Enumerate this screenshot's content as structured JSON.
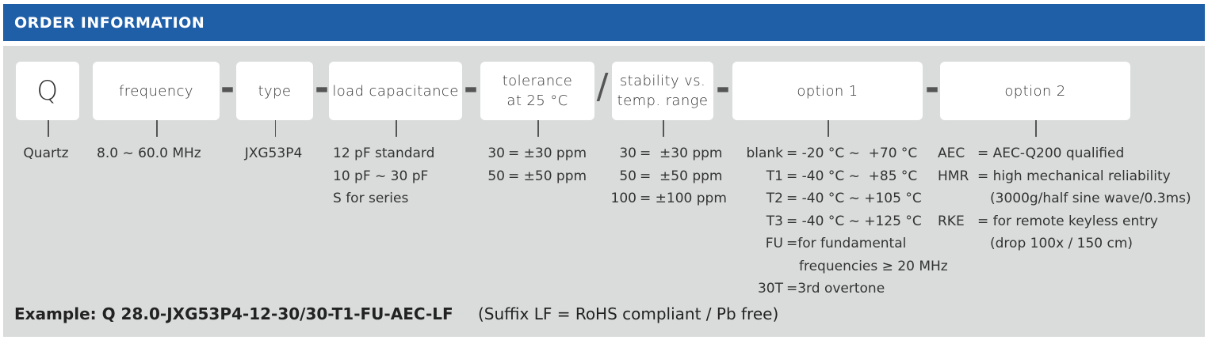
{
  "header": {
    "title": "ORDER INFORMATION"
  },
  "boxes": [
    {
      "label": [
        "Q"
      ],
      "details": [
        "Quartz"
      ]
    },
    {
      "label": [
        "frequency"
      ],
      "details": [
        "8.0 ~ 60.0 MHz"
      ]
    },
    {
      "label": [
        "type"
      ],
      "details": [
        "JXG53P4"
      ]
    },
    {
      "label": [
        "load capacitance"
      ],
      "details": [
        "12 pF standard",
        "10 pF ~ 30 pF",
        "S for series"
      ]
    },
    {
      "label": [
        "tolerance",
        "at 25 °C"
      ],
      "details": [
        {
          "code": "30",
          "desc": "= ±30 ppm"
        },
        {
          "code": "50",
          "desc": "= ±50 ppm"
        }
      ]
    },
    {
      "label": [
        "stability vs.",
        "temp. range"
      ],
      "details": [
        {
          "code": "30",
          "desc": "=  ±30 ppm"
        },
        {
          "code": "50",
          "desc": "=  ±50 ppm"
        },
        {
          "code": "100",
          "desc": "= ±100 ppm"
        }
      ]
    },
    {
      "label": [
        "option 1"
      ],
      "details": [
        {
          "code": "blank",
          "desc": "= -20 °C ~  +70 °C"
        },
        {
          "code": "T1",
          "desc": "= -40 °C ~  +85 °C"
        },
        {
          "code": "T2",
          "desc": "= -40 °C ~ +105 °C"
        },
        {
          "code": "T3",
          "desc": "= -40 °C ~ +125 °C"
        },
        {
          "code": "FU",
          "desc": "=for fundamental"
        },
        {
          "desc": "frequencies ≥ 20 MHz"
        },
        {
          "code": "30T",
          "desc": "=3rd overtone"
        }
      ]
    },
    {
      "label": [
        "option 2"
      ],
      "details": [
        {
          "code": "AEC",
          "desc": "= AEC-Q200 qualified"
        },
        {
          "code": "HMR",
          "desc": "= high mechanical reliability"
        },
        {
          "desc": "(3000g/half sine wave/0.3ms)"
        },
        {
          "code": "RKE",
          "desc": "= for remote keyless entry"
        },
        {
          "desc": "(drop 100x / 150 cm)"
        }
      ]
    }
  ],
  "separators": [
    "-",
    "-",
    "-",
    "/",
    "-",
    "-"
  ],
  "example": "Example: Q 28.0-JXG53P4-12-30/30-T1-FU-AEC-LF",
  "note": "(Suffix LF = RoHS compliant / Pb free)"
}
